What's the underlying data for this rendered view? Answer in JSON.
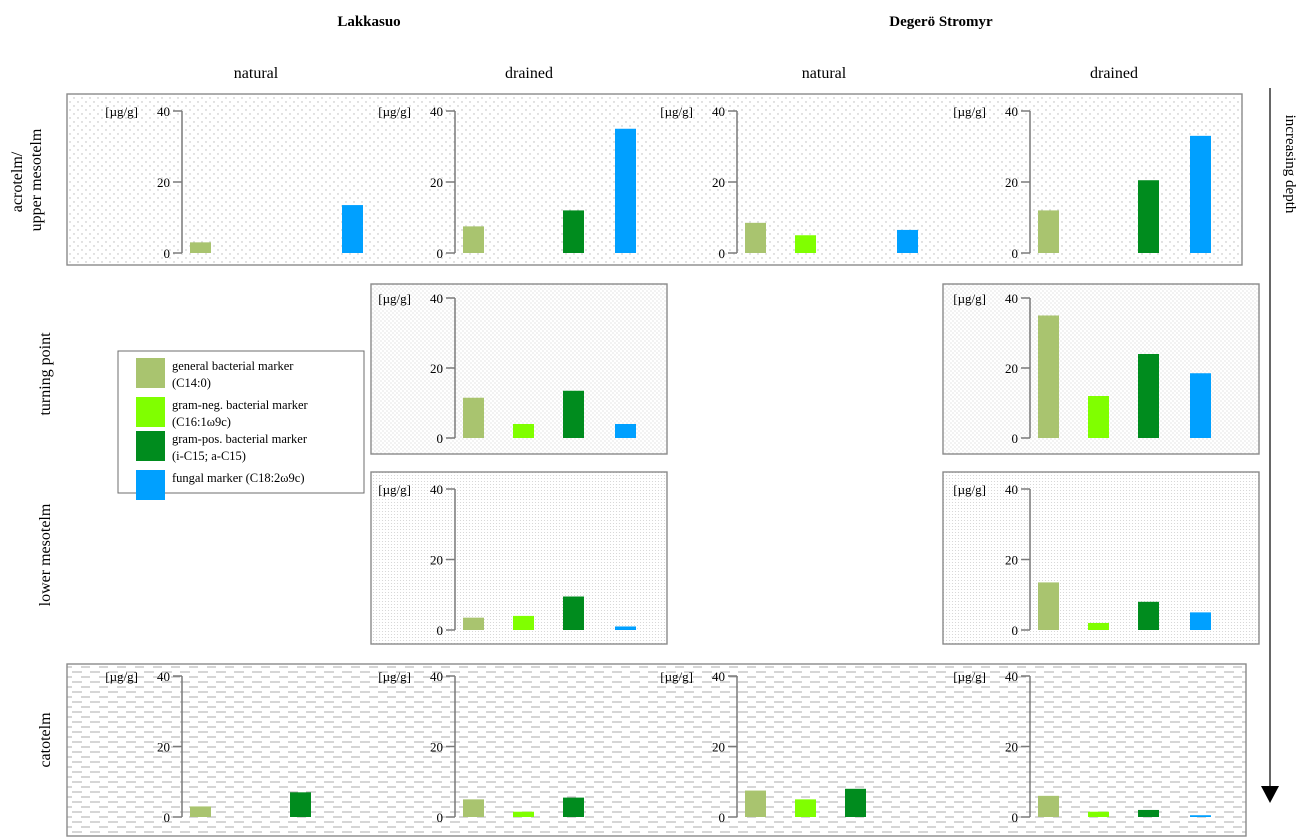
{
  "sites": [
    "Lakkasuo",
    "Degerö Stromyr"
  ],
  "treatments": [
    "natural",
    "drained",
    "natural",
    "drained"
  ],
  "layers": [
    "acrotelm/\nupper mesotelm",
    "turning point",
    "lower mesotelm",
    "catotelm"
  ],
  "depth_label": "increasing depth",
  "legend": [
    {
      "label": "general bacterial marker\n(C14:0)",
      "color": "#A9C46F"
    },
    {
      "label": "gram-neg. bacterial marker\n(C16:1ω9c)",
      "color": "#80FF00"
    },
    {
      "label": "gram-pos. bacterial marker\n(i-C15; a-C15)",
      "color": "#008C1E"
    },
    {
      "label": "fungal marker (C18:2ω9c)",
      "color": "#00A0FF"
    }
  ],
  "chart_data": [
    {
      "type": "bar",
      "site": "Lakkasuo",
      "treatment": "natural",
      "layer": "acrotelm/upper mesotelm",
      "ylabel": "[µg/g]",
      "ylim": [
        0,
        40
      ],
      "yticks": [
        0,
        20,
        40
      ],
      "categories": [
        "general bacterial marker (C14:0)",
        "gram-neg. bacterial marker (C16:1ω9c)",
        "gram-pos. bacterial marker (i-C15; a-C15)",
        "fungal marker (C18:2ω9c)"
      ],
      "values": [
        3,
        0,
        0,
        13.5
      ]
    },
    {
      "type": "bar",
      "site": "Lakkasuo",
      "treatment": "drained",
      "layer": "acrotelm/upper mesotelm",
      "ylabel": "[µg/g]",
      "ylim": [
        0,
        40
      ],
      "yticks": [
        0,
        20,
        40
      ],
      "categories": [
        "general bacterial marker (C14:0)",
        "gram-neg. bacterial marker (C16:1ω9c)",
        "gram-pos. bacterial marker (i-C15; a-C15)",
        "fungal marker (C18:2ω9c)"
      ],
      "values": [
        7.5,
        0,
        12,
        35
      ]
    },
    {
      "type": "bar",
      "site": "Degerö Stromyr",
      "treatment": "natural",
      "layer": "acrotelm/upper mesotelm",
      "ylabel": "[µg/g]",
      "ylim": [
        0,
        40
      ],
      "yticks": [
        0,
        20,
        40
      ],
      "categories": [
        "general bacterial marker (C14:0)",
        "gram-neg. bacterial marker (C16:1ω9c)",
        "gram-pos. bacterial marker (i-C15; a-C15)",
        "fungal marker (C18:2ω9c)"
      ],
      "values": [
        8.5,
        5,
        0,
        6.5
      ]
    },
    {
      "type": "bar",
      "site": "Degerö Stromyr",
      "treatment": "drained",
      "layer": "acrotelm/upper mesotelm",
      "ylabel": "[µg/g]",
      "ylim": [
        0,
        40
      ],
      "yticks": [
        0,
        20,
        40
      ],
      "categories": [
        "general bacterial marker (C14:0)",
        "gram-neg. bacterial marker (C16:1ω9c)",
        "gram-pos. bacterial marker (i-C15; a-C15)",
        "fungal marker (C18:2ω9c)"
      ],
      "values": [
        12,
        0,
        20.5,
        33
      ]
    },
    {
      "type": "bar",
      "site": "Lakkasuo",
      "treatment": "drained",
      "layer": "turning point",
      "ylabel": "[µg/g]",
      "ylim": [
        0,
        40
      ],
      "yticks": [
        0,
        20,
        40
      ],
      "categories": [
        "general bacterial marker (C14:0)",
        "gram-neg. bacterial marker (C16:1ω9c)",
        "gram-pos. bacterial marker (i-C15; a-C15)",
        "fungal marker (C18:2ω9c)"
      ],
      "values": [
        11.5,
        4,
        13.5,
        4
      ]
    },
    {
      "type": "bar",
      "site": "Degerö Stromyr",
      "treatment": "drained",
      "layer": "turning point",
      "ylabel": "[µg/g]",
      "ylim": [
        0,
        40
      ],
      "yticks": [
        0,
        20,
        40
      ],
      "categories": [
        "general bacterial marker (C14:0)",
        "gram-neg. bacterial marker (C16:1ω9c)",
        "gram-pos. bacterial marker (i-C15; a-C15)",
        "fungal marker (C18:2ω9c)"
      ],
      "values": [
        35,
        12,
        24,
        18.5
      ]
    },
    {
      "type": "bar",
      "site": "Lakkasuo",
      "treatment": "drained",
      "layer": "lower mesotelm",
      "ylabel": "[µg/g]",
      "ylim": [
        0,
        40
      ],
      "yticks": [
        0,
        20,
        40
      ],
      "categories": [
        "general bacterial marker (C14:0)",
        "gram-neg. bacterial marker (C16:1ω9c)",
        "gram-pos. bacterial marker (i-C15; a-C15)",
        "fungal marker (C18:2ω9c)"
      ],
      "values": [
        3.5,
        4,
        9.5,
        1
      ]
    },
    {
      "type": "bar",
      "site": "Degerö Stromyr",
      "treatment": "drained",
      "layer": "lower mesotelm",
      "ylabel": "[µg/g]",
      "ylim": [
        0,
        40
      ],
      "yticks": [
        0,
        20,
        40
      ],
      "categories": [
        "general bacterial marker (C14:0)",
        "gram-neg. bacterial marker (C16:1ω9c)",
        "gram-pos. bacterial marker (i-C15; a-C15)",
        "fungal marker (C18:2ω9c)"
      ],
      "values": [
        13.5,
        2,
        8,
        5
      ]
    },
    {
      "type": "bar",
      "site": "Lakkasuo",
      "treatment": "natural",
      "layer": "catotelm",
      "ylabel": "[µg/g]",
      "ylim": [
        0,
        40
      ],
      "yticks": [
        0,
        20,
        40
      ],
      "categories": [
        "general bacterial marker (C14:0)",
        "gram-neg. bacterial marker (C16:1ω9c)",
        "gram-pos. bacterial marker (i-C15; a-C15)",
        "fungal marker (C18:2ω9c)"
      ],
      "values": [
        3,
        0,
        7,
        0
      ]
    },
    {
      "type": "bar",
      "site": "Lakkasuo",
      "treatment": "drained",
      "layer": "catotelm",
      "ylabel": "[µg/g]",
      "ylim": [
        0,
        40
      ],
      "yticks": [
        0,
        20,
        40
      ],
      "categories": [
        "general bacterial marker (C14:0)",
        "gram-neg. bacterial marker (C16:1ω9c)",
        "gram-pos. bacterial marker (i-C15; a-C15)",
        "fungal marker (C18:2ω9c)"
      ],
      "values": [
        5,
        1.5,
        5.5,
        0
      ]
    },
    {
      "type": "bar",
      "site": "Degerö Stromyr",
      "treatment": "natural",
      "layer": "catotelm",
      "ylabel": "[µg/g]",
      "ylim": [
        0,
        40
      ],
      "yticks": [
        0,
        20,
        40
      ],
      "categories": [
        "general bacterial marker (C14:0)",
        "gram-neg. bacterial marker (C16:1ω9c)",
        "gram-pos. bacterial marker (i-C15; a-C15)",
        "fungal marker (C18:2ω9c)"
      ],
      "values": [
        7.5,
        5,
        8,
        0
      ]
    },
    {
      "type": "bar",
      "site": "Degerö Stromyr",
      "treatment": "drained",
      "layer": "catotelm",
      "ylabel": "[µg/g]",
      "ylim": [
        0,
        40
      ],
      "yticks": [
        0,
        20,
        40
      ],
      "categories": [
        "general bacterial marker (C14:0)",
        "gram-neg. bacterial marker (C16:1ω9c)",
        "gram-pos. bacterial marker (i-C15; a-C15)",
        "fungal marker (C18:2ω9c)"
      ],
      "values": [
        6,
        1.5,
        2,
        0.5
      ]
    }
  ]
}
